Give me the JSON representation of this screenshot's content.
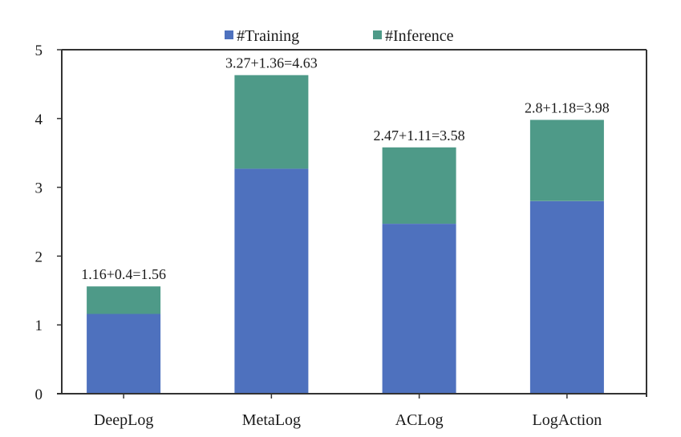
{
  "chart_data": {
    "type": "bar",
    "stacked": true,
    "title": "",
    "xlabel": "",
    "ylabel": "",
    "categories": [
      "DeepLog",
      "MetaLog",
      "ACLog",
      "LogAction"
    ],
    "series": [
      {
        "name": "#Training",
        "color": "#4E71BE",
        "values": [
          1.16,
          3.27,
          2.47,
          2.8
        ]
      },
      {
        "name": "#Inference",
        "color": "#4E9A88",
        "values": [
          0.4,
          1.36,
          1.11,
          1.18
        ]
      }
    ],
    "totals": [
      1.56,
      4.63,
      3.58,
      3.98
    ],
    "data_labels": [
      "1.16+0.4=1.56",
      "3.27+1.36=4.63",
      "2.47+1.11=3.58",
      "2.8+1.18=3.98"
    ],
    "ylim": [
      0,
      5
    ],
    "yticks": [
      0,
      1,
      2,
      3,
      4,
      5
    ],
    "ytick_labels": [
      "0",
      "1",
      "2",
      "3",
      "4",
      "5"
    ],
    "grid": false,
    "legend": {
      "placement": "top-center",
      "entries": [
        "#Training",
        "#Inference"
      ]
    }
  }
}
